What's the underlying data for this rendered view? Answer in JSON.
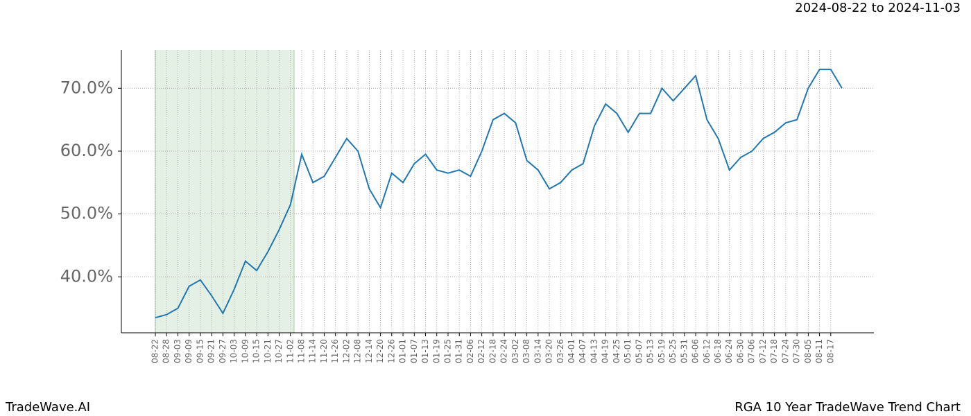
{
  "chart_data": {
    "type": "line",
    "subtitle": "2024-08-22 to 2024-11-03",
    "brand": "TradeWave.AI",
    "title": "RGA 10 Year TradeWave Trend Chart",
    "categories": [
      "08-22",
      "08-28",
      "09-03",
      "09-09",
      "09-15",
      "09-21",
      "09-27",
      "10-03",
      "10-09",
      "10-15",
      "10-21",
      "10-27",
      "11-02",
      "11-08",
      "11-14",
      "11-20",
      "11-26",
      "12-02",
      "12-08",
      "12-14",
      "12-20",
      "12-26",
      "01-01",
      "01-07",
      "01-13",
      "01-19",
      "01-25",
      "01-31",
      "02-06",
      "02-12",
      "02-18",
      "02-24",
      "03-02",
      "03-08",
      "03-14",
      "03-20",
      "03-26",
      "04-01",
      "04-07",
      "04-13",
      "04-19",
      "04-25",
      "05-01",
      "05-07",
      "05-13",
      "05-19",
      "05-25",
      "05-31",
      "06-06",
      "06-12",
      "06-18",
      "06-24",
      "06-30",
      "07-06",
      "07-12",
      "07-18",
      "07-24",
      "07-30",
      "08-05",
      "08-11",
      "08-17",
      null
    ],
    "series": [
      {
        "color": "#1f77b4",
        "values": [
          33.5,
          34,
          35,
          38.5,
          39.5,
          37,
          34.2,
          38,
          42.5,
          41,
          44,
          47.5,
          51.5,
          59.5,
          55,
          56,
          59,
          62,
          60,
          54,
          51,
          56.5,
          55,
          58,
          59.5,
          57,
          56.5,
          57,
          56,
          60,
          65,
          66,
          64.5,
          58.5,
          57,
          54,
          55,
          57,
          58,
          64,
          67.5,
          66,
          63,
          66,
          66,
          70,
          68,
          70,
          72,
          65,
          62,
          57,
          59,
          60,
          62,
          63,
          64.5,
          65,
          70,
          73,
          73,
          70
        ]
      }
    ],
    "highlight": {
      "from": "08-22",
      "to": "11-02",
      "color": "#e5f0e5"
    },
    "ylim": [
      31.1,
      76.1
    ],
    "yticks": [
      {
        "value": 40,
        "label": "40.0%"
      },
      {
        "value": 50,
        "label": "50.0%"
      },
      {
        "value": 60,
        "label": "60.0%"
      },
      {
        "value": 70,
        "label": "70.0%"
      }
    ],
    "grid": true
  }
}
